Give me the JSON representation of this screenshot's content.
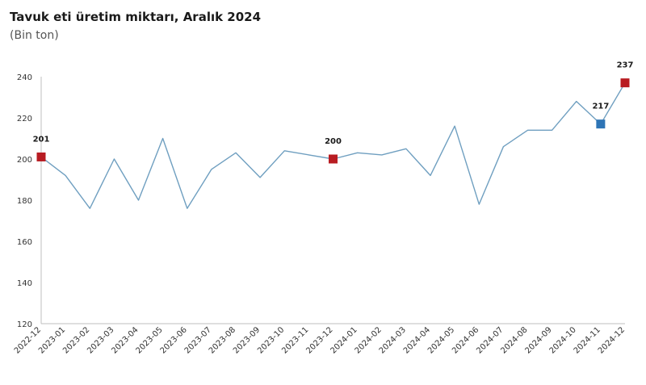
{
  "header": {
    "title": "Tavuk eti üretim miktarı, Aralık 2024",
    "subtitle": "(Bin ton)"
  },
  "colors": {
    "line": "#6f9fc0",
    "highlight_red": "#b81c22",
    "highlight_blue": "#2e75b6",
    "axis": "#bfbfbf"
  },
  "chart_data": {
    "type": "line",
    "title": "Tavuk eti üretim miktarı, Aralık 2024",
    "subtitle": "(Bin ton)",
    "xlabel": "",
    "ylabel": "",
    "ylim": [
      120,
      240
    ],
    "yticks": [
      120,
      140,
      160,
      180,
      200,
      220,
      240
    ],
    "grid": false,
    "categories": [
      "2022-12",
      "2023-01",
      "2023-02",
      "2023-03",
      "2023-04",
      "2023-05",
      "2023-06",
      "2023-07",
      "2023-08",
      "2023-09",
      "2023-10",
      "2023-11",
      "2023-12",
      "2024-01",
      "2024-02",
      "2024-03",
      "2024-04",
      "2024-05",
      "2024-06",
      "2024-07",
      "2024-08",
      "2024-09",
      "2024-10",
      "2024-11",
      "2024-12"
    ],
    "series": [
      {
        "values": [
          201,
          192,
          176,
          200,
          180,
          210,
          176,
          195,
          203,
          191,
          204,
          202,
          200,
          203,
          202,
          205,
          192,
          216,
          178,
          206,
          214,
          214,
          228,
          217,
          237
        ]
      }
    ],
    "highlights": [
      {
        "index": 0,
        "label": "201",
        "color": "#b81c22"
      },
      {
        "index": 12,
        "label": "200",
        "color": "#b81c22"
      },
      {
        "index": 23,
        "label": "217",
        "color": "#2e75b6"
      },
      {
        "index": 24,
        "label": "237",
        "color": "#b81c22"
      }
    ]
  }
}
